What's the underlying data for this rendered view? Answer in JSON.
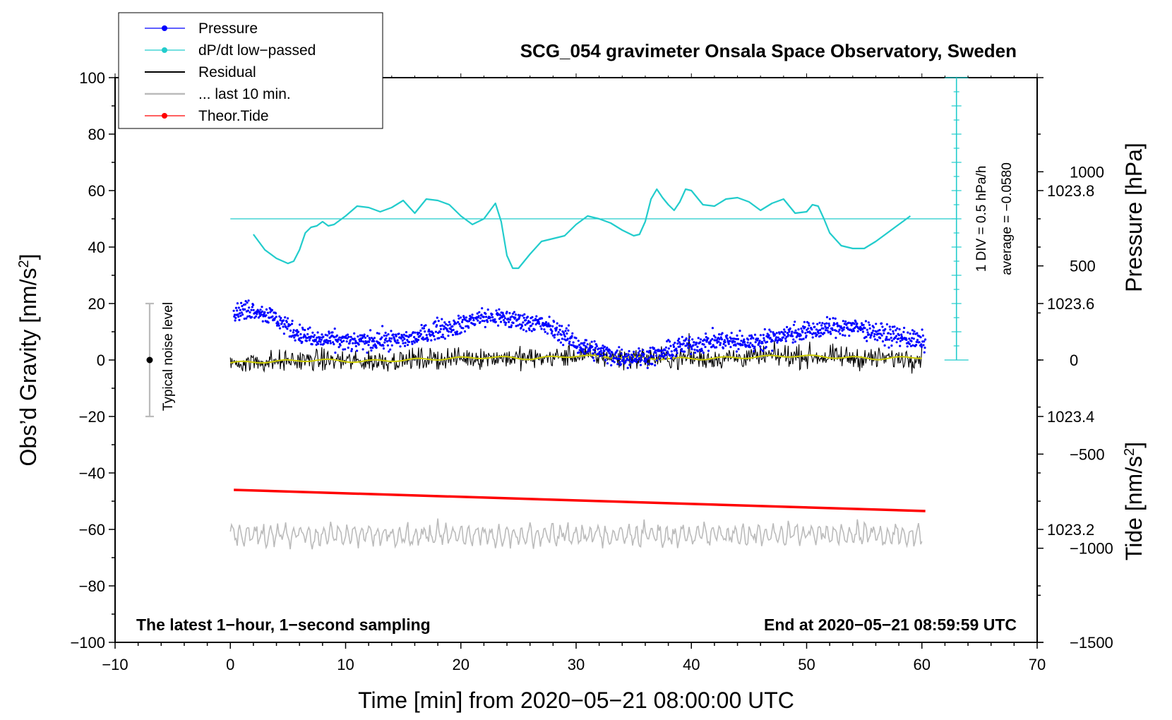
{
  "chart_data": {
    "type": "line",
    "title": "SCG_054 gravimeter Onsala Space Observatory, Sweden",
    "xlabel": "Time [min] from 2020−05−21 08:00:00 UTC",
    "ylabel_left_prefix": "Obs’d Gravity [nm/s",
    "ylabel_left_sup": "2",
    "ylabel_left_suffix": "]",
    "ylabel_right_top": "Pressure [hPa]",
    "ylabel_right_bottom_prefix": "Tide [nm/s",
    "ylabel_right_bottom_sup": "2",
    "ylabel_right_bottom_suffix": "]",
    "xlim": [
      -10,
      70
    ],
    "ylim": [
      -100,
      100
    ],
    "pressure_lim": [
      1023.0,
      1024.0
    ],
    "tide_lim": [
      -1500,
      1500
    ],
    "x_ticks": [
      -10,
      0,
      10,
      20,
      30,
      40,
      50,
      60,
      70
    ],
    "x_tick_labels": [
      "−10",
      "0",
      "10",
      "20",
      "30",
      "40",
      "50",
      "60",
      "70"
    ],
    "y_ticks": [
      -100,
      -80,
      -60,
      -40,
      -20,
      0,
      20,
      40,
      60,
      80,
      100
    ],
    "y_tick_labels": [
      "−100",
      "−80",
      "−60",
      "−40",
      "−20",
      "0",
      "20",
      "40",
      "60",
      "80",
      "100"
    ],
    "pressure_ticks": [
      1023.2,
      1023.4,
      1023.6,
      1023.8
    ],
    "pressure_tick_labels": [
      "1023.2",
      "1023.4",
      "1023.6",
      "1023.8"
    ],
    "tide_ticks": [
      -1500,
      -1000,
      -500,
      0,
      500,
      1000
    ],
    "tide_tick_labels": [
      "−1500",
      "−1000",
      "−500",
      "0",
      "500",
      "1000"
    ],
    "legend": [
      {
        "label": "Pressure",
        "color": "#0000ff",
        "marker": true
      },
      {
        "label": "dP/dt low−passed",
        "color": "#22cccc",
        "marker": true
      },
      {
        "label": "Residual",
        "color": "#000000",
        "marker": false
      },
      {
        "label": "... last 10 min.",
        "color": "#bbbbbb",
        "marker": false
      },
      {
        "label": "Theor.Tide",
        "color": "#ff0000",
        "marker": true
      }
    ],
    "pressure_series": {
      "name": "Pressure",
      "color": "#0000ff",
      "x_range": [
        0.3,
        60.3
      ],
      "values_hpa": [
        1023.585,
        1023.59,
        1023.575,
        1023.55,
        1023.535,
        1023.535,
        1023.53,
        1023.535,
        1023.535,
        1023.54,
        1023.555,
        1023.56,
        1023.575,
        1023.575,
        1023.57,
        1023.565,
        1023.55,
        1023.525,
        1023.515,
        1023.505,
        1023.505,
        1023.51,
        1023.525,
        1023.53,
        1023.535,
        1023.53,
        1023.535,
        1023.545,
        1023.55,
        1023.555,
        1023.56,
        1023.555,
        1023.545,
        1023.54,
        1023.53
      ]
    },
    "dpdt_series": {
      "name": "dP/dt low−passed",
      "color": "#22cccc",
      "x": [
        2,
        3,
        4,
        5,
        5.5,
        6,
        6.5,
        7,
        7.5,
        8,
        8.5,
        9,
        10,
        11,
        12,
        13,
        14,
        15,
        16,
        17,
        18,
        19,
        20,
        21,
        22,
        23,
        23.5,
        24,
        24.5,
        25,
        26,
        27,
        28,
        29,
        30,
        31,
        32,
        33,
        34,
        35,
        35.5,
        36,
        36.5,
        37,
        37.5,
        38,
        38.5,
        39,
        39.5,
        40,
        41,
        42,
        43,
        44,
        45,
        46,
        47,
        48,
        49,
        50,
        50.5,
        51,
        51.5,
        52,
        53,
        54,
        55,
        56,
        57,
        58,
        59
      ],
      "y": [
        44.5,
        39,
        36,
        34.2,
        35,
        39,
        45,
        47,
        47.5,
        49,
        47.5,
        48,
        51,
        54.5,
        54,
        52.5,
        54,
        56.5,
        52,
        57,
        56.5,
        55,
        51,
        48,
        50,
        55.5,
        49,
        37,
        32.5,
        32.5,
        37.5,
        42,
        43,
        44,
        48,
        51,
        50,
        48.5,
        46,
        44,
        44.5,
        49,
        57,
        60.5,
        57.5,
        55,
        53,
        56,
        60.5,
        60,
        55,
        54.5,
        57,
        57.5,
        56,
        53,
        55.5,
        57,
        52,
        52.5,
        55,
        54.5,
        50,
        45,
        40.5,
        39.5,
        39.5,
        42,
        45,
        48,
        51
      ]
    },
    "dpdt_reference": {
      "y": 50,
      "x_range": [
        0,
        63
      ]
    },
    "dpdt_scale_bar": {
      "x": 63,
      "y_range": [
        0,
        100
      ],
      "minor_step": 5,
      "major_step": 10
    },
    "dpdt_scale_note": "1 DIV = 0.5 hPa/h",
    "dpdt_average_note": "average = −0.0580",
    "residual_series": {
      "name": "Residual",
      "color": "#000000",
      "x_range": [
        0,
        60
      ],
      "smooth_color": "#cccc00",
      "baseline": [
        -1,
        -0.5,
        0,
        -0.5,
        0,
        0.5,
        1,
        0.5,
        1.5,
        1,
        0.5,
        0.5,
        1,
        1.5,
        1,
        0.5,
        1
      ]
    },
    "last10_series": {
      "name": "... last 10 min.",
      "color": "#bbbbbb",
      "x_range": [
        0,
        60
      ],
      "center": -62
    },
    "tide_series": {
      "name": "Theor.Tide",
      "color": "#ff0000",
      "x": [
        0.3,
        60.3
      ],
      "y_gravity": [
        -46,
        -53.5
      ]
    },
    "noise_indicator": {
      "label": "Typical noise level",
      "x": -7,
      "center": 0,
      "range": [
        -20,
        20
      ]
    },
    "annotations": {
      "bottom_left": "The latest 1−hour, 1−second sampling",
      "bottom_right": "End at 2020−05−21 08:59:59 UTC"
    }
  }
}
